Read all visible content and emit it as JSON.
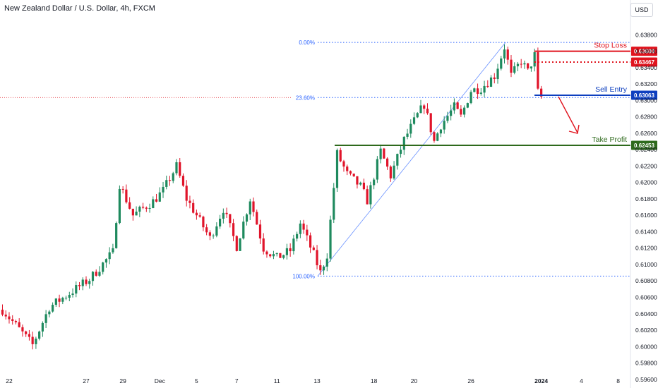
{
  "header": {
    "title": "New Zealand Dollar / U.S. Dollar, 4h, FXCM",
    "currency": "USD"
  },
  "chart_data": {
    "type": "candlestick",
    "symbol": "NZDUSD",
    "interval": "4h",
    "source": "FXCM",
    "ylim": [
      0.5965,
      0.6388
    ],
    "y_ticks": [
      "0.63800",
      "0.63600",
      "0.63400",
      "0.63200",
      "0.63000",
      "0.62800",
      "0.62600",
      "0.62400",
      "0.62200",
      "0.62000",
      "0.61800",
      "0.61600",
      "0.61400",
      "0.61200",
      "0.61000",
      "0.60800",
      "0.60600",
      "0.60400",
      "0.60200",
      "0.60000",
      "0.59800",
      "0.59600"
    ],
    "x_ticks": [
      "22",
      "27",
      "29",
      "Dec",
      "5",
      "7",
      "11",
      "13",
      "18",
      "20",
      "26",
      "2024",
      "4",
      "8"
    ],
    "x_tick_bars": [
      2,
      25,
      36,
      47,
      58,
      70,
      82,
      94,
      111,
      123,
      140,
      161,
      173,
      184
    ],
    "last_bar_index": 161,
    "anchors": [
      {
        "bar": 0,
        "price": 0.6045
      },
      {
        "bar": 9,
        "price": 0.6002
      },
      {
        "bar": 14,
        "price": 0.6048
      },
      {
        "bar": 20,
        "price": 0.6065
      },
      {
        "bar": 26,
        "price": 0.6082
      },
      {
        "bar": 33,
        "price": 0.6115
      },
      {
        "bar": 35,
        "price": 0.6198
      },
      {
        "bar": 39,
        "price": 0.616
      },
      {
        "bar": 45,
        "price": 0.6177
      },
      {
        "bar": 48,
        "price": 0.619
      },
      {
        "bar": 52,
        "price": 0.622
      },
      {
        "bar": 55,
        "price": 0.618
      },
      {
        "bar": 58,
        "price": 0.616
      },
      {
        "bar": 62,
        "price": 0.6132
      },
      {
        "bar": 66,
        "price": 0.6168
      },
      {
        "bar": 70,
        "price": 0.6122
      },
      {
        "bar": 74,
        "price": 0.618
      },
      {
        "bar": 78,
        "price": 0.612
      },
      {
        "bar": 82,
        "price": 0.6108
      },
      {
        "bar": 86,
        "price": 0.6117
      },
      {
        "bar": 89,
        "price": 0.615
      },
      {
        "bar": 93,
        "price": 0.6112
      },
      {
        "bar": 95,
        "price": 0.609
      },
      {
        "bar": 97,
        "price": 0.6112
      },
      {
        "bar": 100,
        "price": 0.6235
      },
      {
        "bar": 103,
        "price": 0.621
      },
      {
        "bar": 107,
        "price": 0.6195
      },
      {
        "bar": 109,
        "price": 0.6178
      },
      {
        "bar": 113,
        "price": 0.6238
      },
      {
        "bar": 116,
        "price": 0.6208
      },
      {
        "bar": 120,
        "price": 0.6252
      },
      {
        "bar": 124,
        "price": 0.6282
      },
      {
        "bar": 126,
        "price": 0.6295
      },
      {
        "bar": 129,
        "price": 0.625
      },
      {
        "bar": 131,
        "price": 0.627
      },
      {
        "bar": 135,
        "price": 0.6292
      },
      {
        "bar": 137,
        "price": 0.628
      },
      {
        "bar": 140,
        "price": 0.6312
      },
      {
        "bar": 143,
        "price": 0.6315
      },
      {
        "bar": 147,
        "price": 0.633
      },
      {
        "bar": 150,
        "price": 0.6365
      },
      {
        "bar": 152,
        "price": 0.633
      },
      {
        "bar": 155,
        "price": 0.6348
      },
      {
        "bar": 157,
        "price": 0.6335
      },
      {
        "bar": 159,
        "price": 0.6355
      },
      {
        "bar": 160,
        "price": 0.631
      },
      {
        "bar": 161,
        "price": 0.6304
      }
    ],
    "fibonacci": {
      "high": 0.63707,
      "low": 0.60859,
      "levels": [
        {
          "label": "0.00%",
          "price": 0.63707
        },
        {
          "label": "23.60%",
          "price": 0.63035
        },
        {
          "label": "100.00%",
          "price": 0.60859
        }
      ]
    },
    "levels": [
      {
        "name": "Stop Loss",
        "value": 0.636,
        "tag": "0.63600",
        "color": "#e0141e",
        "style": "solid"
      },
      {
        "name": "",
        "value": 0.63467,
        "tag": "0.63467",
        "color": "#e0141e",
        "style": "dotted"
      },
      {
        "name": "Sell Entry",
        "value": 0.63063,
        "tag": "0.63063",
        "color": "#0d3fbf",
        "style": "solid"
      },
      {
        "name": "Take Profit",
        "value": 0.62453,
        "tag": "0.62453",
        "color": "#2e6a1c",
        "style": "solid"
      }
    ],
    "colors": {
      "up": "#1e8a5e",
      "down": "#e0142a",
      "fib": "#2962ff",
      "arrow": "#e0141e"
    }
  }
}
